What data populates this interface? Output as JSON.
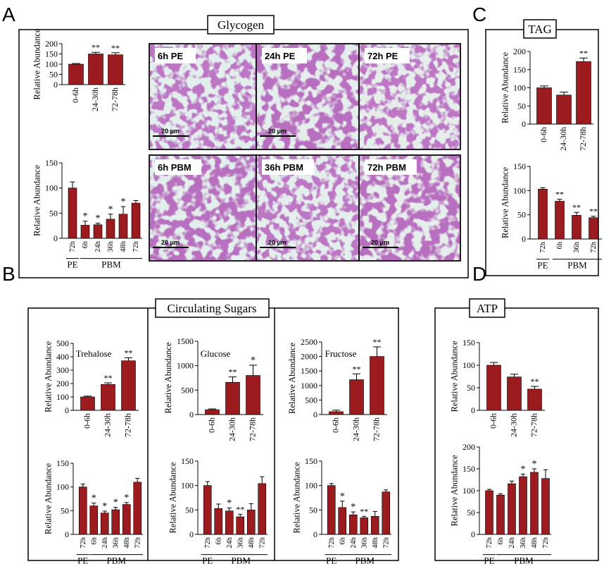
{
  "panels": {
    "A": {
      "letter": "A",
      "title": "Glycogen"
    },
    "B": {
      "letter": "B",
      "title": "Circulating Sugars"
    },
    "C": {
      "letter": "C",
      "title": "TAG"
    },
    "D": {
      "letter": "D",
      "title": "ATP"
    }
  },
  "group_labels": {
    "pe": "PE",
    "pbm": "PBM"
  },
  "micrographs": [
    {
      "label": "6h PE",
      "scale_bar": "20 μm"
    },
    {
      "label": "24h PE",
      "scale_bar": "20 μm"
    },
    {
      "label": "72h PE",
      "scale_bar": "20 μm"
    },
    {
      "label": "6h PBM",
      "scale_bar": "20 μm"
    },
    {
      "label": "36h PBM",
      "scale_bar": "20 μm"
    },
    {
      "label": "72h PBM",
      "scale_bar": "20 μm"
    }
  ],
  "colors": {
    "bar": "#9b1b1f",
    "frame": "#000000"
  },
  "chart_data": [
    {
      "id": "glycogen_pe",
      "type": "bar",
      "title": "",
      "ylabel": "Relative Abundance",
      "ylim": [
        0,
        200
      ],
      "yticks": [
        0,
        50,
        100,
        150,
        200
      ],
      "categories": [
        "0-6h",
        "24-30h",
        "72-78h"
      ],
      "values": [
        100,
        150,
        146
      ],
      "errors": [
        3,
        8,
        10
      ],
      "significance": [
        "",
        "**",
        "**"
      ]
    },
    {
      "id": "glycogen_pbm",
      "type": "bar",
      "title": "",
      "ylabel": "Relative Abundance",
      "ylim": [
        0,
        150
      ],
      "yticks": [
        0,
        50,
        100,
        150
      ],
      "categories": [
        "72h",
        "6h",
        "24h",
        "36h",
        "48h",
        "72h"
      ],
      "values": [
        100,
        26,
        27,
        38,
        48,
        70
      ],
      "errors": [
        12,
        8,
        3,
        10,
        15,
        5
      ],
      "significance": [
        "",
        "*",
        "*",
        "*",
        "*",
        ""
      ]
    },
    {
      "id": "tag_pe",
      "type": "bar",
      "title": "",
      "ylabel": "Relative Abundance",
      "ylim": [
        0,
        200
      ],
      "yticks": [
        0,
        50,
        100,
        150,
        200
      ],
      "categories": [
        "0-6h",
        "24-30h",
        "72-78h"
      ],
      "values": [
        100,
        80,
        172
      ],
      "errors": [
        5,
        8,
        10
      ],
      "significance": [
        "",
        "",
        "**"
      ]
    },
    {
      "id": "tag_pbm",
      "type": "bar",
      "title": "",
      "ylabel": "Relative Abundance",
      "ylim": [
        0,
        150
      ],
      "yticks": [
        0,
        50,
        100,
        150
      ],
      "categories": [
        "72h",
        "6h",
        "36h",
        "72h"
      ],
      "values": [
        103,
        78,
        49,
        44
      ],
      "errors": [
        3,
        4,
        6,
        3
      ],
      "significance": [
        "",
        "**",
        "**",
        "**"
      ]
    },
    {
      "id": "trehalose_pe",
      "type": "bar",
      "title": "Trehalose",
      "ylabel": "Relative Abundance",
      "ylim": [
        0,
        500
      ],
      "yticks": [
        0,
        100,
        200,
        300,
        400,
        500
      ],
      "categories": [
        "0-6h",
        "24-30h",
        "72-78h"
      ],
      "values": [
        100,
        193,
        370
      ],
      "errors": [
        6,
        12,
        22
      ],
      "significance": [
        "",
        "**",
        "**"
      ]
    },
    {
      "id": "trehalose_pbm",
      "type": "bar",
      "title": "",
      "ylabel": "Relative Abundance",
      "ylim": [
        0,
        150
      ],
      "yticks": [
        0,
        50,
        100,
        150
      ],
      "categories": [
        "72h",
        "6h",
        "24h",
        "36h",
        "48h",
        "72h"
      ],
      "values": [
        100,
        60,
        45,
        52,
        63,
        110
      ],
      "errors": [
        6,
        6,
        4,
        5,
        4,
        8
      ],
      "significance": [
        "",
        "*",
        "*",
        "*",
        "*",
        ""
      ]
    },
    {
      "id": "glucose_pe",
      "type": "bar",
      "title": "Glucose",
      "ylabel": "Relative Abundance",
      "ylim": [
        0,
        1500
      ],
      "yticks": [
        0,
        500,
        1000,
        1500
      ],
      "categories": [
        "0-6h",
        "24-30h",
        "72-78h"
      ],
      "values": [
        100,
        660,
        800
      ],
      "errors": [
        15,
        110,
        210
      ],
      "significance": [
        "",
        "**",
        "*"
      ]
    },
    {
      "id": "glucose_pbm",
      "type": "bar",
      "title": "",
      "ylabel": "Relative Abundance",
      "ylim": [
        0,
        150
      ],
      "yticks": [
        0,
        50,
        100,
        150
      ],
      "categories": [
        "72h",
        "6h",
        "24h",
        "36h",
        "48h",
        "72h"
      ],
      "values": [
        100,
        53,
        48,
        36,
        50,
        104
      ],
      "errors": [
        8,
        9,
        6,
        5,
        13,
        14
      ],
      "significance": [
        "",
        "",
        "*",
        "**",
        "",
        ""
      ]
    },
    {
      "id": "fructose_pe",
      "type": "bar",
      "title": "Fructose",
      "ylabel": "Relative Abundance",
      "ylim": [
        0,
        2500
      ],
      "yticks": [
        0,
        500,
        1000,
        1500,
        2000,
        2500
      ],
      "categories": [
        "0-6h",
        "24-30h",
        "72-78h"
      ],
      "values": [
        100,
        1200,
        2000
      ],
      "errors": [
        50,
        200,
        330
      ],
      "significance": [
        "",
        "**",
        "**"
      ]
    },
    {
      "id": "fructose_pbm",
      "type": "bar",
      "title": "",
      "ylabel": "Relative Abundance",
      "ylim": [
        0,
        150
      ],
      "yticks": [
        0,
        50,
        100,
        150
      ],
      "categories": [
        "72h",
        "6h",
        "24h",
        "36h",
        "48h",
        "72h"
      ],
      "values": [
        100,
        55,
        40,
        34,
        37,
        87
      ],
      "errors": [
        4,
        13,
        6,
        3,
        10,
        4
      ],
      "significance": [
        "",
        "*",
        "*",
        "**",
        "",
        ""
      ]
    },
    {
      "id": "atp_pe",
      "type": "bar",
      "title": "",
      "ylabel": "Relative Abundance",
      "ylim": [
        0,
        150
      ],
      "yticks": [
        0,
        50,
        100,
        150
      ],
      "categories": [
        "0-6h",
        "24-30h",
        "72-78h"
      ],
      "values": [
        100,
        74,
        47
      ],
      "errors": [
        6,
        6,
        6
      ],
      "significance": [
        "",
        "",
        "**"
      ]
    },
    {
      "id": "atp_pbm",
      "type": "bar",
      "title": "",
      "ylabel": "Relative Abundance",
      "ylim": [
        0,
        200
      ],
      "yticks": [
        0,
        50,
        100,
        150,
        200
      ],
      "categories": [
        "72h",
        "6h",
        "24h",
        "36h",
        "48h",
        "72h"
      ],
      "values": [
        100,
        90,
        116,
        132,
        142,
        128
      ],
      "errors": [
        3,
        3,
        6,
        6,
        8,
        20
      ],
      "significance": [
        "",
        "",
        "",
        "*",
        "*",
        ""
      ]
    }
  ]
}
